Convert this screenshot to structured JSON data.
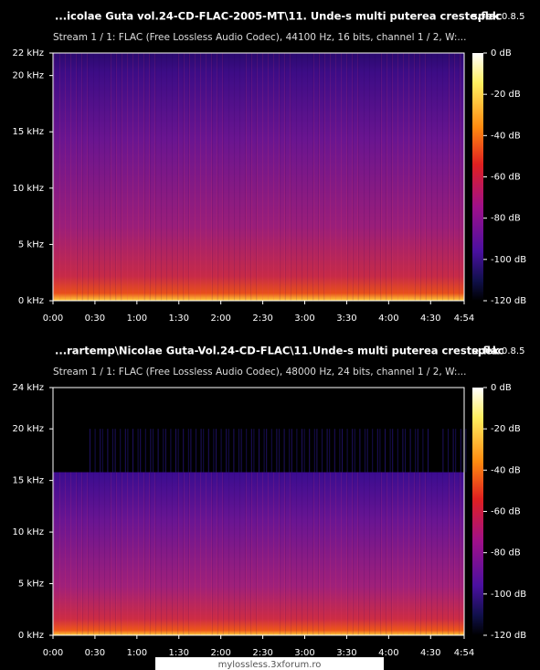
{
  "panels": [
    {
      "title": "...icolae Guta vol.24-CD-FLAC-2005-MT\\11. Unde-s multi puterea creste.flac",
      "app": "spek",
      "version": "0.8.5",
      "stream": "Stream 1 / 1: FLAC (Free Lossless Audio Codec), 44100 Hz, 16 bits, channel 1 / 2, W:...",
      "freq_labels": [
        "22 kHz",
        "20 kHz",
        "15 kHz",
        "10 kHz",
        "5 kHz",
        "0 kHz"
      ],
      "time_labels": [
        "0:00",
        "0:30",
        "1:00",
        "1:30",
        "2:00",
        "2:30",
        "3:00",
        "3:30",
        "4:00",
        "4:30",
        "4:54"
      ],
      "db_labels": [
        "0 dB",
        "-20 dB",
        "-40 dB",
        "-60 dB",
        "-80 dB",
        "-100 dB",
        "-120 dB"
      ]
    },
    {
      "title": "...rartemp\\Nicolae Guta-Vol.24-CD-FLAC\\11.Unde-s multi puterea creste.flac",
      "app": "spek",
      "version": "0.8.5",
      "stream": "Stream 1 / 1: FLAC (Free Lossless Audio Codec), 48000 Hz, 24 bits, channel 1 / 2, W:...",
      "freq_labels": [
        "24 kHz",
        "20 kHz",
        "15 kHz",
        "10 kHz",
        "5 kHz",
        "0 kHz"
      ],
      "time_labels": [
        "0:00",
        "0:30",
        "1:00",
        "1:30",
        "2:00",
        "2:30",
        "3:00",
        "3:30",
        "4:00",
        "4:30",
        "4:54"
      ],
      "db_labels": [
        "0 dB",
        "-20 dB",
        "-40 dB",
        "-60 dB",
        "-80 dB",
        "-100 dB",
        "-120 dB"
      ]
    }
  ],
  "footer": "mylossless.3xforum.ro"
}
